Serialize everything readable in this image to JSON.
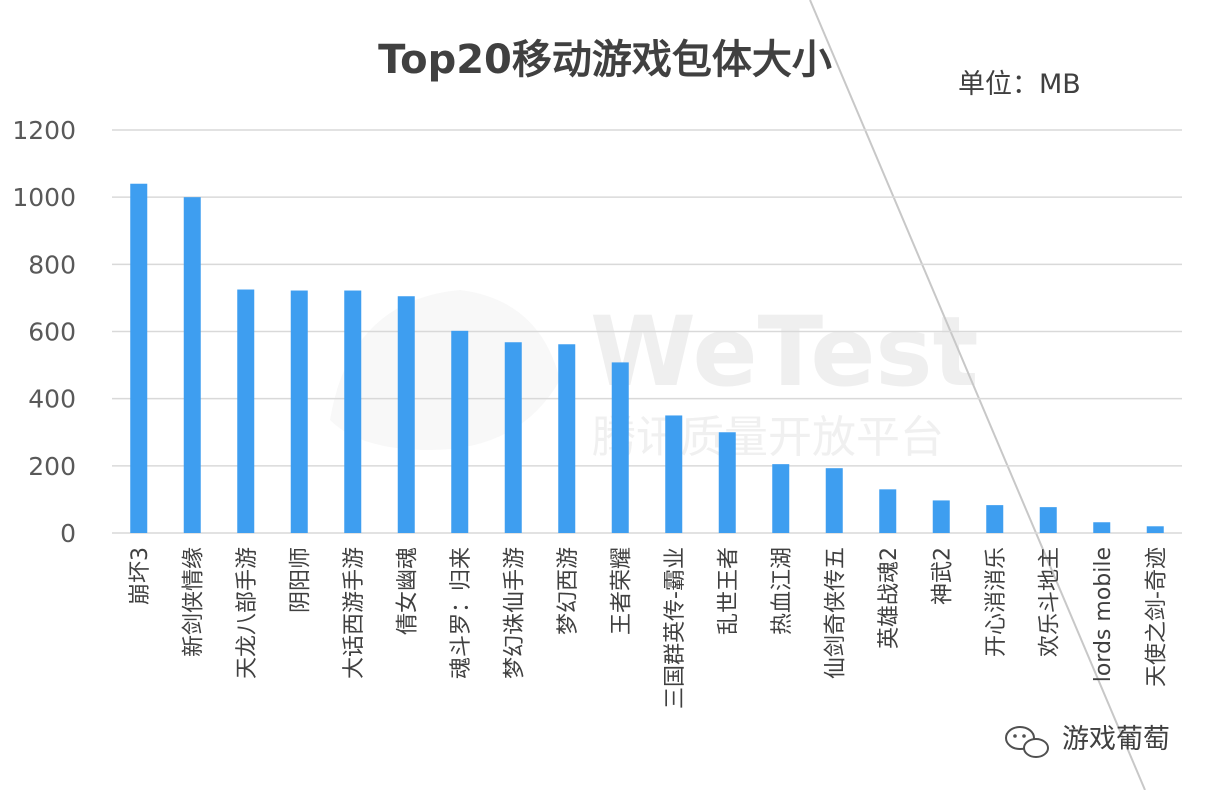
{
  "chart_data": {
    "type": "bar",
    "title": "Top20移动游戏包体大小",
    "unit_label": "单位：MB",
    "categories": [
      "崩坏3",
      "新剑侠情缘",
      "天龙八部手游",
      "阴阳师",
      "大话西游手游",
      "倩女幽魂",
      "魂斗罗：归来",
      "梦幻诛仙手游",
      "梦幻西游",
      "王者荣耀",
      "三国群英传-霸业",
      "乱世王者",
      "热血江湖",
      "仙剑奇侠传五",
      "英雄战魂2",
      "神武2",
      "开心消消乐",
      "欢乐斗地主",
      "lords mobile",
      "天使之剑-奇迹"
    ],
    "values": [
      1040,
      1000,
      725,
      722,
      722,
      705,
      602,
      568,
      562,
      508,
      350,
      300,
      205,
      193,
      130,
      97,
      83,
      77,
      32,
      20
    ],
    "yticks": [
      "0",
      "200",
      "400",
      "600",
      "800",
      "1000",
      "1200"
    ],
    "ylim": [
      0,
      1200
    ],
    "grid": true,
    "bar_color": "#3e9ef0"
  },
  "watermark": {
    "text": "WeTest",
    "subtext": "腾讯质量开放平台"
  },
  "badge": {
    "text": "游戏葡萄"
  }
}
